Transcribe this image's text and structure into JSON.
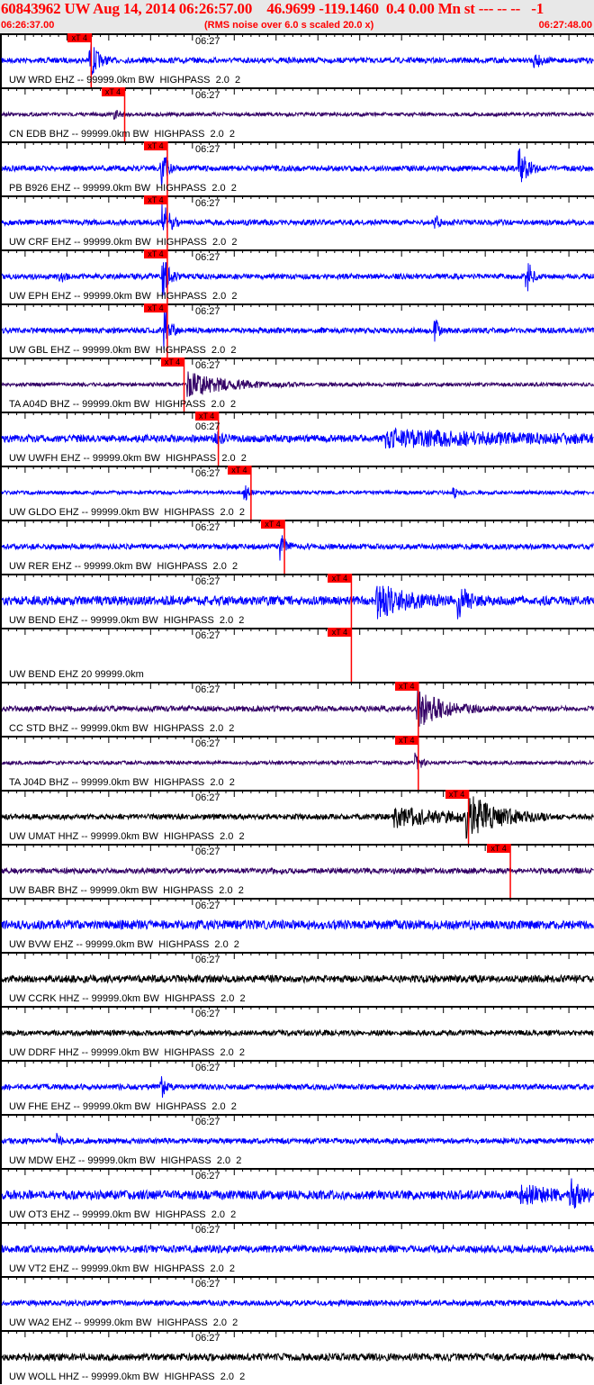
{
  "header": {
    "title": "60843962 UW Aug 14, 2014 06:26:57.00    46.9699 -119.1460  0.4 0.00 Mn st --- -- --   -1",
    "start_time": "06:26:37.00",
    "end_time": "06:27:48.00",
    "note": "(RMS noise over 6.0 s scaled 20.0 x)"
  },
  "axis_label": "06:27",
  "pick_label": "xT 4",
  "colors": {
    "header_text": "#ff0000",
    "blue": "#0000ff",
    "purple": "#330066",
    "black": "#000000",
    "pick": "#ff0000"
  },
  "traces": [
    {
      "label": "UW WRD EHZ -- 99999.0km BW  HIGHPASS  2.0  2",
      "color": "blue",
      "pick": "06:26:47.9"
    },
    {
      "label": "CN EDB BHZ -- 99999.0km BW  HIGHPASS  2.0  2",
      "color": "purple",
      "pick": "06:26:51.9"
    },
    {
      "label": "PB B926 EHZ -- 99999.0km BW  HIGHPASS  2.0  2",
      "color": "blue",
      "pick": "06:26:57.0"
    },
    {
      "label": "UW CRF EHZ -- 99999.0km BW  HIGHPASS  2.0  2",
      "color": "blue",
      "pick": "06:26:57.0"
    },
    {
      "label": "UW EPH EHZ -- 99999.0km BW  HIGHPASS  2.0  2",
      "color": "blue",
      "pick": "06:26:57.0"
    },
    {
      "label": "UW GBL EHZ -- 99999.0km BW  HIGHPASS  2.0  2",
      "color": "blue",
      "pick": "06:26:57.0"
    },
    {
      "label": "TA A04D BHZ -- 99999.0km BW  HIGHPASS  2.0  2",
      "color": "purple",
      "pick": "06:26:59.0"
    },
    {
      "label": "UW UWFH EHZ -- 99999.0km BW  HIGHPASS  2.0  2",
      "color": "blue",
      "pick": "06:27:03.1"
    },
    {
      "label": "UW GLDO EHZ -- 99999.0km BW  HIGHPASS  2.0  2",
      "color": "blue",
      "pick": "06:27:07.0"
    },
    {
      "label": "UW RER EHZ -- 99999.0km BW  HIGHPASS  2.0  2",
      "color": "blue",
      "pick": "06:27:11.0"
    },
    {
      "label": "UW BEND EHZ -- 99999.0km BW  HIGHPASS  2.0  2",
      "color": "blue",
      "pick": "06:27:19.0"
    },
    {
      "label": "UW BEND EHZ 20 99999.0km",
      "color": "none",
      "pick": "06:27:19.0"
    },
    {
      "label": "CC STD BHZ -- 99999.0km BW  HIGHPASS  2.0  2",
      "color": "purple",
      "pick": "06:27:27.0"
    },
    {
      "label": "TA J04D BHZ -- 99999.0km BW  HIGHPASS  2.0  2",
      "color": "purple",
      "pick": "06:27:27.0"
    },
    {
      "label": "UW UMAT HHZ -- 99999.0km BW  HIGHPASS  2.0  2",
      "color": "black",
      "pick": "06:27:33.0"
    },
    {
      "label": "UW BABR BHZ -- 99999.0km BW  HIGHPASS  2.0  2",
      "color": "purple",
      "pick": "06:27:38.0"
    },
    {
      "label": "UW BVW EHZ -- 99999.0km BW  HIGHPASS  2.0  2",
      "color": "blue",
      "pick": null
    },
    {
      "label": "UW CCRK HHZ -- 99999.0km BW  HIGHPASS  2.0  2",
      "color": "black",
      "pick": null
    },
    {
      "label": "UW DDRF HHZ -- 99999.0km BW  HIGHPASS  2.0  2",
      "color": "black",
      "pick": null
    },
    {
      "label": "UW FHE EHZ -- 99999.0km BW  HIGHPASS  2.0  2",
      "color": "blue",
      "pick": null
    },
    {
      "label": "UW MDW EHZ -- 99999.0km BW  HIGHPASS  2.0  2",
      "color": "blue",
      "pick": null
    },
    {
      "label": "UW OT3 EHZ -- 99999.0km BW  HIGHPASS  2.0  2",
      "color": "blue",
      "pick": null
    },
    {
      "label": "UW VT2 EHZ -- 99999.0km BW  HIGHPASS  2.0  2",
      "color": "blue",
      "pick": null
    },
    {
      "label": "UW WA2 EHZ -- 99999.0km BW  HIGHPASS  2.0  2",
      "color": "blue",
      "pick": null
    },
    {
      "label": "UW WOLL HHZ -- 99999.0km BW  HIGHPASS  2.0  2",
      "color": "black",
      "pick": null
    }
  ]
}
